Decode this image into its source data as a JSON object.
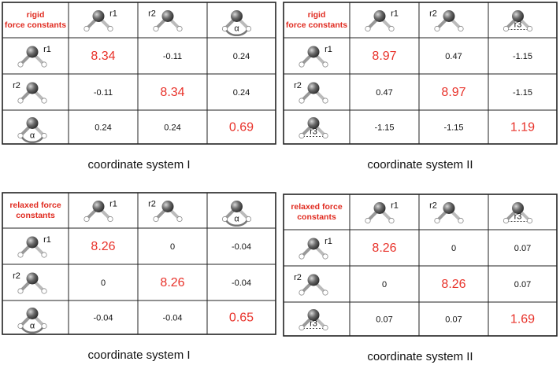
{
  "tables": [
    {
      "header": [
        "rigid",
        "force constants"
      ],
      "columns": [
        "r1",
        "r2",
        "α"
      ],
      "rows": [
        {
          "label": "r1",
          "values": [
            "8.34",
            "-0.11",
            "0.24"
          ]
        },
        {
          "label": "r2",
          "values": [
            "-0.11",
            "8.34",
            "0.24"
          ]
        },
        {
          "label": "α",
          "values": [
            "0.24",
            "0.24",
            "0.69"
          ]
        }
      ],
      "caption": "coordinate system I"
    },
    {
      "header": [
        "rigid",
        "force constants"
      ],
      "columns": [
        "r1",
        "r2",
        "r3"
      ],
      "rows": [
        {
          "label": "r1",
          "values": [
            "8.97",
            "0.47",
            "-1.15"
          ]
        },
        {
          "label": "r2",
          "values": [
            "0.47",
            "8.97",
            "-1.15"
          ]
        },
        {
          "label": "r3",
          "values": [
            "-1.15",
            "-1.15",
            "1.19"
          ]
        }
      ],
      "caption": "coordinate system II"
    },
    {
      "header": [
        "relaxed force",
        "constants"
      ],
      "columns": [
        "r1",
        "r2",
        "α"
      ],
      "rows": [
        {
          "label": "r1",
          "values": [
            "8.26",
            "0",
            "-0.04"
          ]
        },
        {
          "label": "r2",
          "values": [
            "0",
            "8.26",
            "-0.04"
          ]
        },
        {
          "label": "α",
          "values": [
            "-0.04",
            "-0.04",
            "0.65"
          ]
        }
      ],
      "caption": "coordinate system I"
    },
    {
      "header": [
        "relaxed force",
        "constants"
      ],
      "columns": [
        "r1",
        "r2",
        "r3"
      ],
      "rows": [
        {
          "label": "r1",
          "values": [
            "8.26",
            "0",
            "0.07"
          ]
        },
        {
          "label": "r2",
          "values": [
            "0",
            "8.26",
            "0.07"
          ]
        },
        {
          "label": "r3",
          "values": [
            "0.07",
            "0.07",
            "1.69"
          ]
        }
      ],
      "caption": "coordinate system II"
    }
  ]
}
